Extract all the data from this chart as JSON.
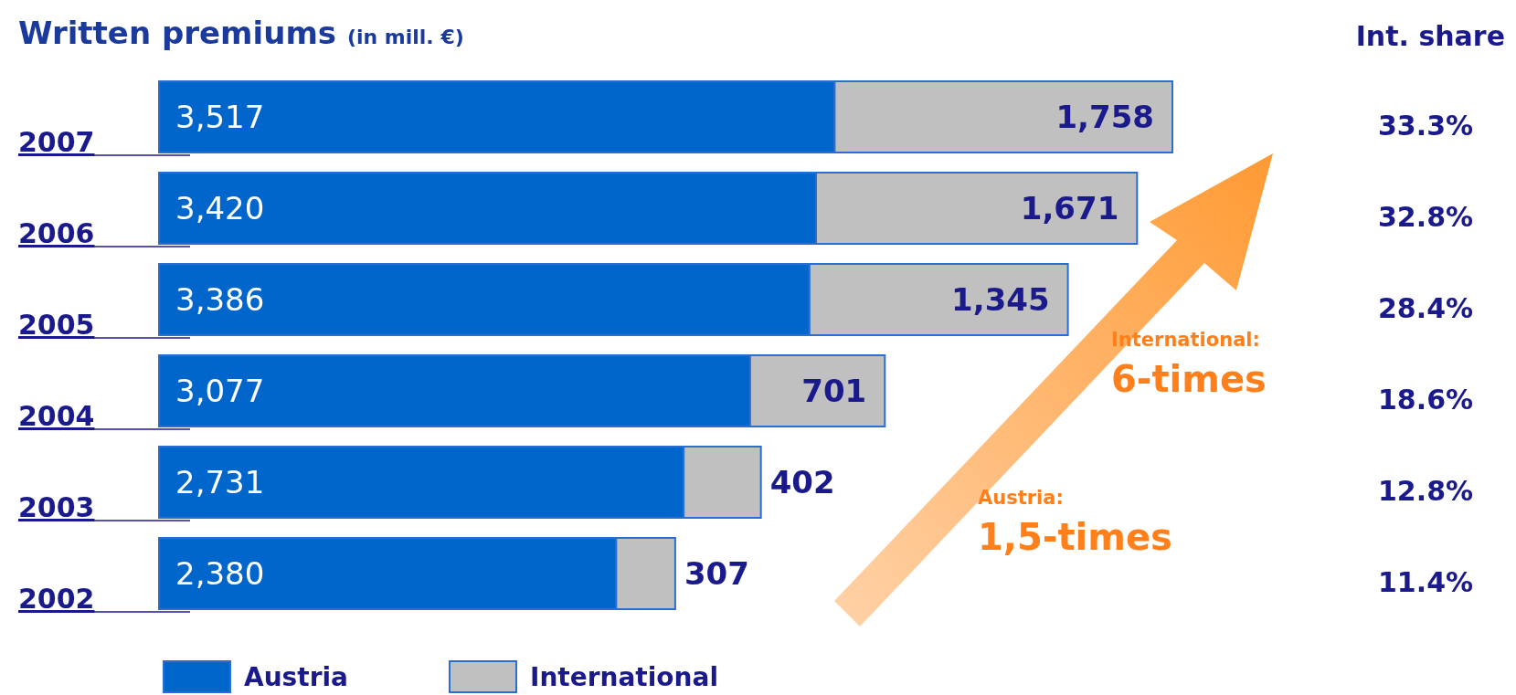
{
  "chart_data": {
    "type": "bar",
    "orientation": "horizontal",
    "stacked": true,
    "title": "Written premiums",
    "subtitle": "(in mill. €)",
    "categories": [
      "2007",
      "2006",
      "2005",
      "2004",
      "2003",
      "2002"
    ],
    "series": [
      {
        "name": "Austria",
        "color": "#0066cc",
        "values": [
          3517,
          3420,
          3386,
          3077,
          2731,
          2380
        ],
        "value_labels": [
          "3,517",
          "3,420",
          "3,386",
          "3,077",
          "2,731",
          "2,380"
        ]
      },
      {
        "name": "International",
        "color": "#c0c0c0",
        "values": [
          1758,
          1671,
          1345,
          701,
          402,
          307
        ],
        "value_labels": [
          "1,758",
          "1,671",
          "1,345",
          "701",
          "402",
          "307"
        ]
      }
    ],
    "legend": "bottom left",
    "annotations": [
      "Int. share",
      "33.3%",
      "32.8%",
      "28.4%",
      "18.6%",
      "12.8%",
      "11.4%",
      "International:",
      "6-times",
      "Austria:",
      "1,5-times"
    ]
  }
}
